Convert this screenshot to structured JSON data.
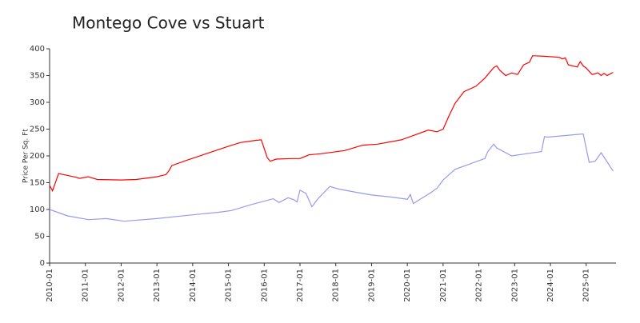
{
  "chart_data": {
    "type": "line",
    "title": "Montego Cove vs Stuart",
    "y_label": "Price Per Sq. Ft",
    "xlim": [
      "2010-01",
      "2025-11"
    ],
    "xticks": [
      "2010-01",
      "2011-01",
      "2012-01",
      "2013-01",
      "2014-01",
      "2015-01",
      "2016-01",
      "2017-01",
      "2018-01",
      "2019-01",
      "2020-01",
      "2021-01",
      "2022-01",
      "2023-01",
      "2024-01",
      "2025-01"
    ],
    "ylim": [
      0,
      400
    ],
    "yticks": [
      0,
      50,
      100,
      150,
      200,
      250,
      300,
      350,
      400
    ],
    "series": [
      {
        "color": "#ff0000",
        "x": [
          "2010-01",
          "2010-02",
          "2010-04",
          "2010-10",
          "2010-11",
          "2011-02",
          "2011-05",
          "2012-01",
          "2012-06",
          "2013-01",
          "2013-04",
          "2013-05",
          "2013-06",
          "2013-11",
          "2014-06",
          "2015-01",
          "2015-05",
          "2015-10",
          "2015-12",
          "2016-02",
          "2016-03",
          "2016-05",
          "2016-10",
          "2017-01",
          "2017-04",
          "2017-08",
          "2018-04",
          "2018-10",
          "2019-03",
          "2019-11",
          "2020-04",
          "2020-08",
          "2020-11",
          "2021-01",
          "2021-03",
          "2021-05",
          "2021-08",
          "2021-12",
          "2022-03",
          "2022-06",
          "2022-07",
          "2022-08",
          "2022-10",
          "2022-12",
          "2023-02",
          "2023-04",
          "2023-06",
          "2023-07",
          "2023-11",
          "2024-04",
          "2024-05",
          "2024-06",
          "2024-07",
          "2024-10",
          "2024-11",
          "2024-12",
          "2025-01",
          "2025-03",
          "2025-05",
          "2025-06",
          "2025-07",
          "2025-08",
          "2025-10"
        ],
        "values": [
          145,
          135,
          167,
          160,
          158,
          161,
          156,
          155,
          156,
          161,
          165,
          172,
          182,
          192,
          205,
          218,
          225,
          229,
          230,
          197,
          190,
          194,
          195,
          195,
          202,
          204,
          210,
          220,
          222,
          230,
          240,
          248,
          245,
          250,
          275,
          298,
          320,
          330,
          345,
          365,
          368,
          360,
          350,
          355,
          352,
          370,
          375,
          387,
          386,
          384,
          381,
          383,
          370,
          366,
          376,
          368,
          364,
          352,
          355,
          350,
          354,
          350,
          356
        ]
      },
      {
        "color": "#9999ee",
        "x": [
          "2010-01",
          "2010-07",
          "2011-02",
          "2011-08",
          "2012-02",
          "2013-01",
          "2014-01",
          "2014-10",
          "2015-02",
          "2015-08",
          "2016-04",
          "2016-06",
          "2016-09",
          "2016-11",
          "2016-12",
          "2017-01",
          "2017-03",
          "2017-05",
          "2017-07",
          "2017-10",
          "2017-11",
          "2018-02",
          "2018-08",
          "2019-01",
          "2019-08",
          "2020-01",
          "2020-02",
          "2020-03",
          "2020-09",
          "2020-11",
          "2021-01",
          "2021-05",
          "2022-03",
          "2022-04",
          "2022-06",
          "2022-07",
          "2022-12",
          "2023-06",
          "2023-10",
          "2023-11",
          "2023-12",
          "2024-12",
          "2025-02",
          "2025-04",
          "2025-06",
          "2025-10"
        ],
        "values": [
          100,
          88,
          81,
          83,
          78,
          83,
          90,
          95,
          98,
          108,
          120,
          113,
          122,
          118,
          114,
          136,
          130,
          105,
          120,
          137,
          143,
          138,
          132,
          127,
          123,
          119,
          128,
          111,
          132,
          140,
          155,
          175,
          195,
          208,
          222,
          215,
          200,
          205,
          208,
          236,
          235,
          241,
          188,
          190,
          206,
          172
        ]
      }
    ]
  }
}
